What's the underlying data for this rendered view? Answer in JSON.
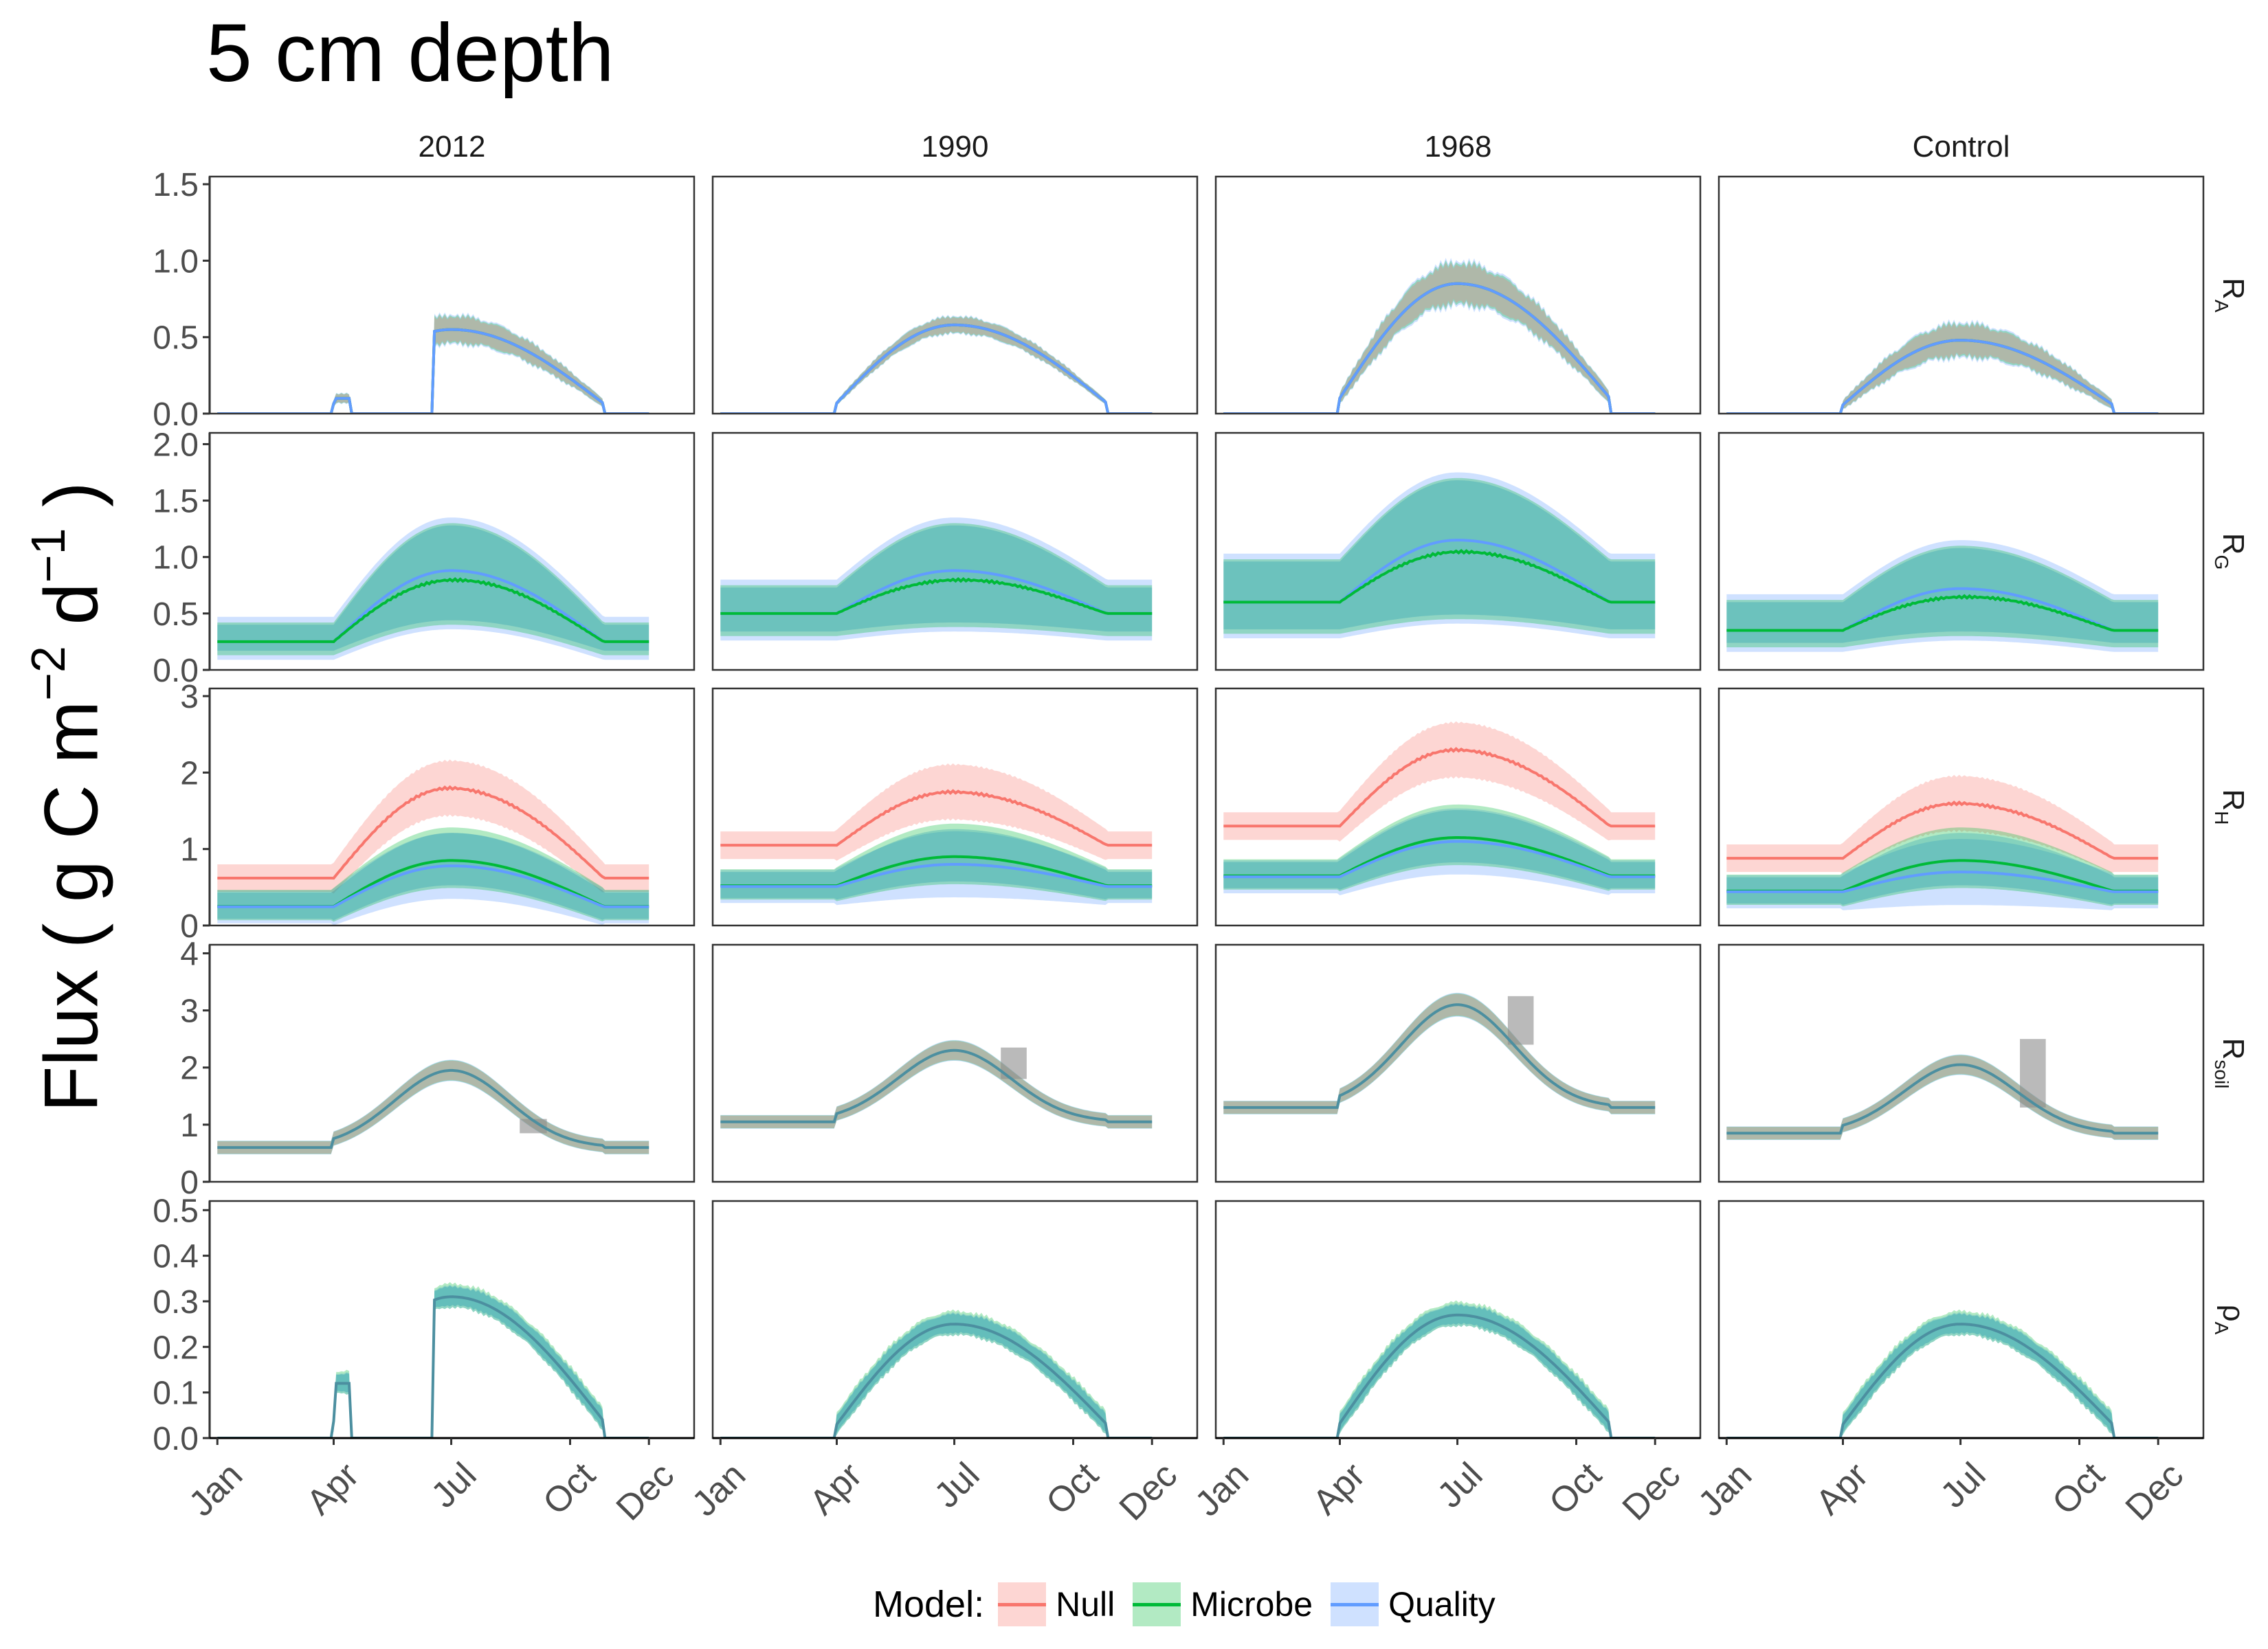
{
  "title": "5 cm depth",
  "ylabel": {
    "main": "Flux ( g C m",
    "exp1": "−2",
    "mid": " d",
    "exp2": "−1",
    "end": " )"
  },
  "legend": {
    "title": "Model:",
    "items": [
      {
        "label": "Null",
        "line": "#f8766d",
        "fill": "#f8766d"
      },
      {
        "label": "Microbe",
        "line": "#00ba38",
        "fill": "#00ba38"
      },
      {
        "label": "Quality",
        "line": "#619cff",
        "fill": "#619cff"
      }
    ]
  },
  "chart_data": {
    "type": "line",
    "columns": [
      "2012",
      "1990",
      "1968",
      "Control"
    ],
    "rows": [
      {
        "label": "R",
        "sub": "A",
        "ylim": [
          0,
          1.55
        ],
        "ticks": [
          0.0,
          0.5,
          1.0,
          1.5
        ],
        "fmt": 1
      },
      {
        "label": "R",
        "sub": "G",
        "ylim": [
          0,
          2.1
        ],
        "ticks": [
          0.0,
          0.5,
          1.0,
          1.5,
          2.0
        ],
        "fmt": 1
      },
      {
        "label": "R",
        "sub": "H",
        "ylim": [
          0,
          3.1
        ],
        "ticks": [
          0,
          1,
          2,
          3
        ],
        "fmt": 0
      },
      {
        "label": "R",
        "sub": "soil",
        "ylim": [
          0,
          4.15
        ],
        "ticks": [
          0,
          1,
          2,
          3,
          4
        ],
        "fmt": 0
      },
      {
        "label": "ρ",
        "sub": "A",
        "ylim": [
          0,
          0.52
        ],
        "ticks": [
          0.0,
          0.1,
          0.2,
          0.3,
          0.4,
          0.5
        ],
        "fmt": 1
      }
    ],
    "x_ticks": [
      "Jan",
      "Apr",
      "Jul",
      "Oct",
      "Dec"
    ],
    "x_tick_doy": [
      1,
      91,
      182,
      274,
      335
    ],
    "x_range": [
      -5,
      370
    ],
    "season": {
      "start": 91,
      "peak": 182,
      "end": 300
    },
    "series": [
      {
        "name": "Null",
        "color": "#f8766d"
      },
      {
        "name": "Microbe",
        "color": "#00ba38"
      },
      {
        "name": "Quality",
        "color": "#619cff"
      }
    ],
    "ra": {
      "2012": {
        "peak": 0.55,
        "band": 0.1,
        "gap_start": 104,
        "gap_end": 168,
        "early": 0.1
      },
      "1990": {
        "peak": 0.58,
        "band": 0.06
      },
      "1968": {
        "peak": 0.85,
        "band": 0.15
      },
      "Control": {
        "peak": 0.48,
        "band": 0.12
      }
    },
    "rg": {
      "2012": {
        "base": 0.25,
        "peak": 0.8,
        "quality_peak": 0.88,
        "lo": 0.13,
        "hi": 0.42,
        "peak_lo": 0.4,
        "peak_hi": 1.3
      },
      "1990": {
        "base": 0.5,
        "peak": 0.8,
        "quality_peak": 0.88,
        "lo": 0.3,
        "hi": 0.75,
        "peak_lo": 0.38,
        "peak_hi": 1.3
      },
      "1968": {
        "base": 0.6,
        "peak": 1.05,
        "quality_peak": 1.15,
        "lo": 0.32,
        "hi": 0.98,
        "peak_lo": 0.45,
        "peak_hi": 1.7
      },
      "Control": {
        "base": 0.35,
        "peak": 0.65,
        "quality_peak": 0.72,
        "lo": 0.2,
        "hi": 0.62,
        "peak_lo": 0.3,
        "peak_hi": 1.1
      }
    },
    "rh": {
      "2012": {
        "null_base": 0.62,
        "null_peak": 1.8,
        "base": 0.25,
        "peak": 0.85,
        "quality_peak": 0.78
      },
      "1990": {
        "null_base": 1.05,
        "null_peak": 1.75,
        "base": 0.52,
        "peak": 0.9,
        "quality_peak": 0.8
      },
      "1968": {
        "null_base": 1.3,
        "null_peak": 2.3,
        "base": 0.65,
        "peak": 1.15,
        "quality_peak": 1.1
      },
      "Control": {
        "null_base": 0.88,
        "null_peak": 1.6,
        "base": 0.45,
        "peak": 0.85,
        "quality_peak": 0.7
      }
    },
    "rsoil": {
      "2012": {
        "base": 0.6,
        "peak": 1.95,
        "obs": {
          "x0": 235,
          "x1": 256,
          "y0": 0.85,
          "y1": 1.1
        }
      },
      "1990": {
        "base": 1.05,
        "peak": 2.3,
        "obs": {
          "x0": 218,
          "x1": 238,
          "y0": 1.8,
          "y1": 2.35
        }
      },
      "1968": {
        "base": 1.3,
        "peak": 3.1,
        "obs": {
          "x0": 221,
          "x1": 241,
          "y0": 2.4,
          "y1": 3.25
        }
      },
      "Control": {
        "base": 0.85,
        "peak": 2.05,
        "obs": {
          "x0": 228,
          "x1": 248,
          "y0": 1.3,
          "y1": 2.5
        }
      }
    },
    "pa": {
      "2012": {
        "peak": 0.31,
        "early": 0.12
      },
      "1990": {
        "peak": 0.25
      },
      "1968": {
        "peak": 0.27
      },
      "Control": {
        "peak": 0.25
      }
    }
  }
}
